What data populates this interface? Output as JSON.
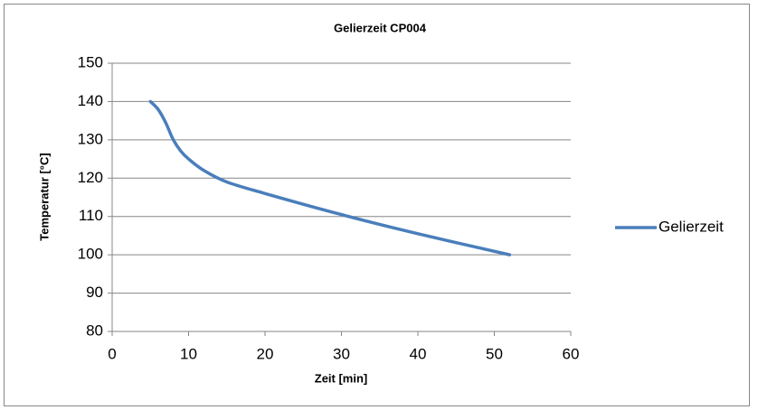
{
  "chart_data": {
    "type": "line",
    "title": "Gelierzeit CP004",
    "x_label": "Zeit [min]",
    "y_label": "Temperatur [°C]",
    "series": [
      {
        "name": "Gelierzeit",
        "color": "#4a7ebb",
        "x": [
          5,
          6,
          7,
          8,
          9,
          10,
          12,
          15,
          20,
          30,
          40,
          52
        ],
        "values": [
          140,
          138,
          134.5,
          130,
          127,
          125,
          122,
          119,
          116,
          110.5,
          105.5,
          100
        ]
      }
    ],
    "xlim": [
      0,
      60
    ],
    "xticks": [
      0,
      10,
      20,
      30,
      40,
      50,
      60
    ],
    "ylim": [
      80,
      150
    ],
    "yticks": [
      80,
      90,
      100,
      110,
      120,
      130,
      140,
      150
    ],
    "grid": true,
    "legend": "right"
  }
}
